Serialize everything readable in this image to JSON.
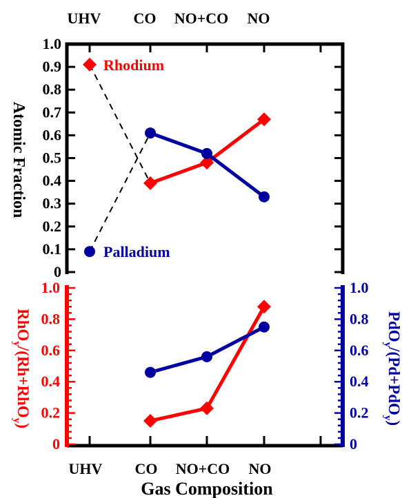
{
  "chart_data": [
    {
      "type": "line",
      "panel": "top",
      "categories": [
        "UHV",
        "CO",
        "NO+CO",
        "NO"
      ],
      "top_axis_labels": [
        "UHV",
        "CO",
        "NO+CO",
        "NO"
      ],
      "ylabel": "Atomic Fraction",
      "ylim": [
        0,
        1.0
      ],
      "yticks": [
        "0",
        "0.1",
        "0.2",
        "0.3",
        "0.4",
        "0.5",
        "0.6",
        "0.7",
        "0.8",
        "0.9",
        "1.0"
      ],
      "series": [
        {
          "name": "Rhodium",
          "color": "#ff0000",
          "marker": "diamond",
          "values": [
            0.91,
            0.39,
            0.48,
            0.67
          ],
          "uhv_link": "dashed"
        },
        {
          "name": "Palladium",
          "color": "#0000a0",
          "marker": "circle",
          "values": [
            0.09,
            0.61,
            0.52,
            0.33
          ],
          "uhv_link": "dashed"
        }
      ]
    },
    {
      "type": "line",
      "panel": "bottom",
      "categories": [
        "UHV",
        "CO",
        "NO+CO",
        "NO"
      ],
      "xlabel": "Gas Composition",
      "ylim": [
        0,
        1.0
      ],
      "left_axis": {
        "color": "#ff0000",
        "label_parts": [
          "RhO",
          "y",
          "/(Rh+RhO",
          "y",
          ")"
        ],
        "ticks": [
          "0",
          "0.2",
          "0.4",
          "0.6",
          "0.8",
          "1.0"
        ]
      },
      "right_axis": {
        "color": "#0000a0",
        "label_parts": [
          "PdO",
          "y",
          "/(Pd+PdO",
          "y",
          ")"
        ],
        "ticks": [
          "0",
          "0.2",
          "0.4",
          "0.6",
          "0.8",
          "1.0"
        ]
      },
      "series": [
        {
          "axis": "left",
          "color": "#ff0000",
          "marker": "diamond",
          "values": [
            null,
            0.15,
            0.23,
            0.88
          ]
        },
        {
          "axis": "right",
          "color": "#0000a0",
          "marker": "circle",
          "values": [
            null,
            0.46,
            0.56,
            0.75
          ]
        }
      ]
    }
  ]
}
